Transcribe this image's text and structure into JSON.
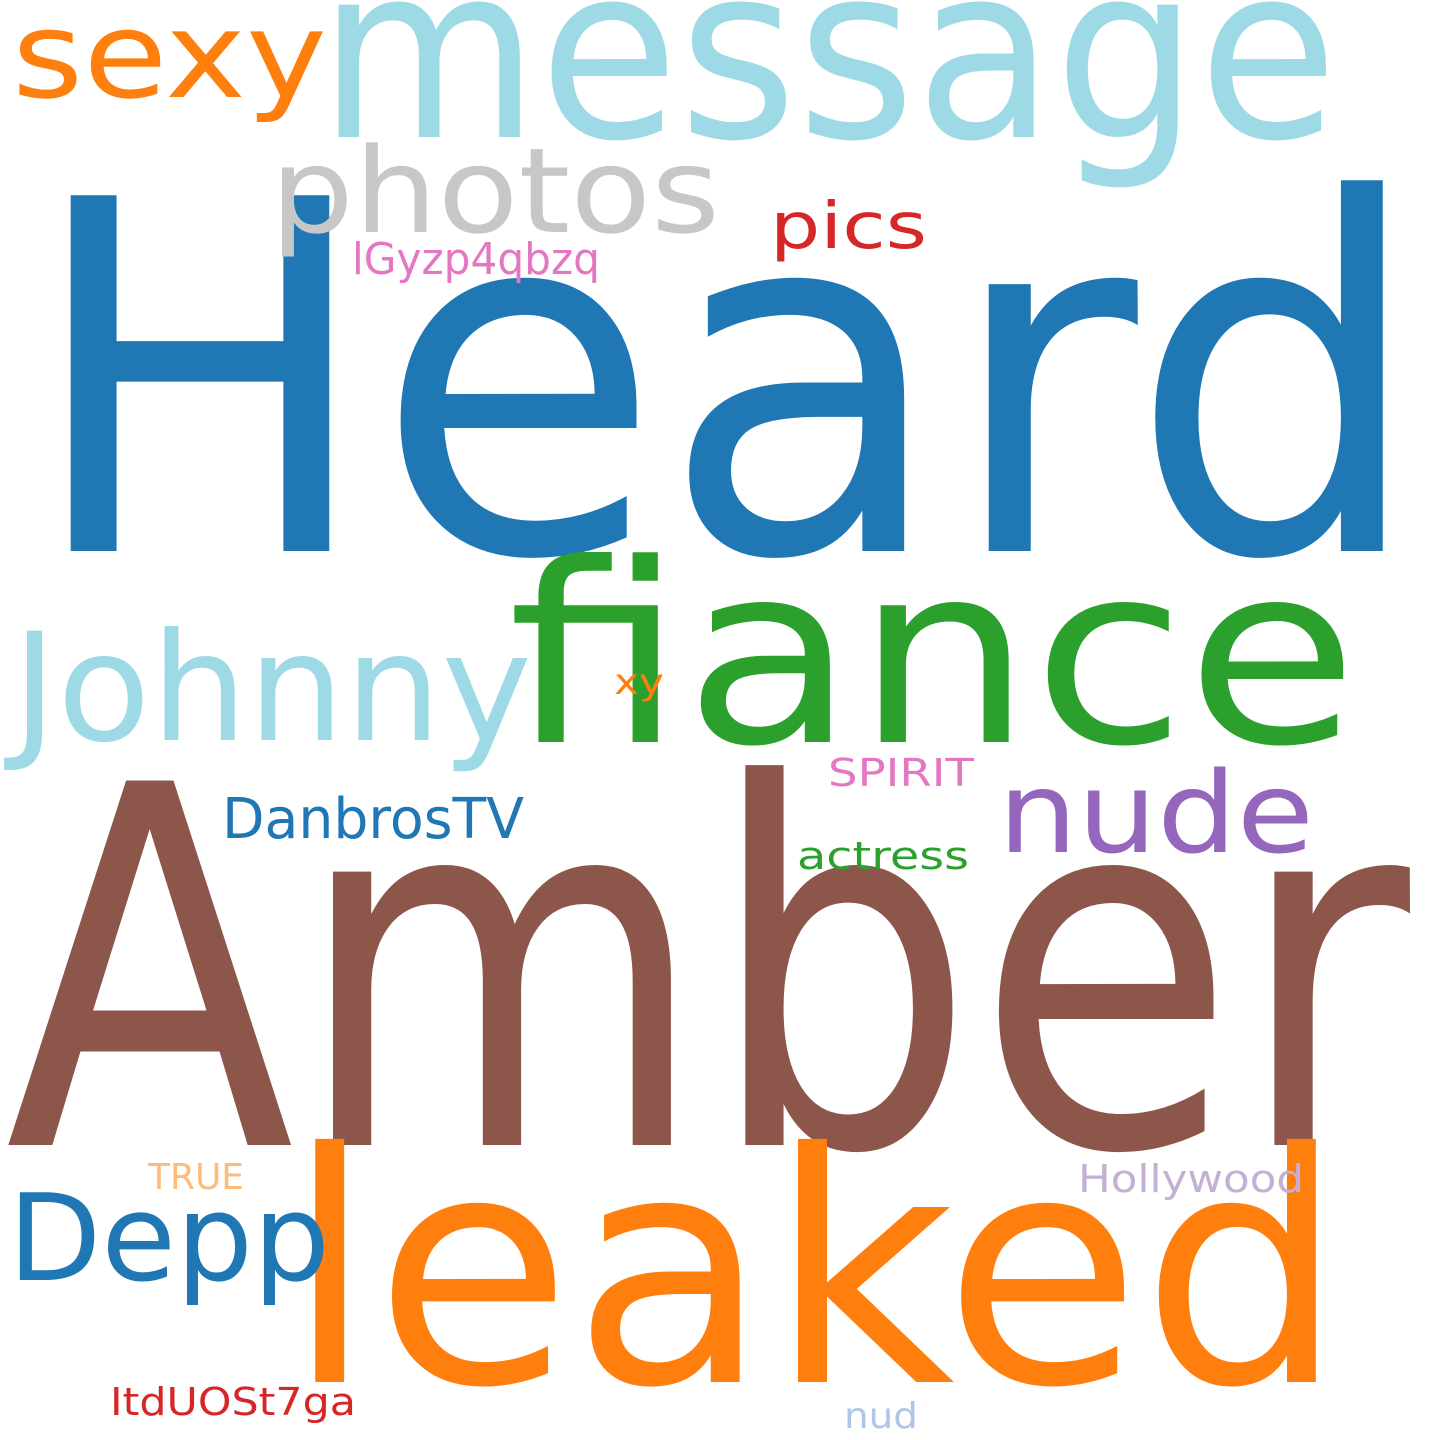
{
  "words": [
    {
      "text": "Heard",
      "color": "#1f77b4"
    },
    {
      "text": "Amber",
      "color": "#8c564b"
    },
    {
      "text": "message",
      "color": "#9edae5"
    },
    {
      "text": "fiance",
      "color": "#2ca02c"
    },
    {
      "text": "leaked",
      "color": "#ff7f0e"
    },
    {
      "text": "Johnny",
      "color": "#9edae5"
    },
    {
      "text": "sexy",
      "color": "#ff7f0e"
    },
    {
      "text": "photos",
      "color": "#c7c7c7"
    },
    {
      "text": "Depp",
      "color": "#1f77b4"
    },
    {
      "text": "nude",
      "color": "#9467bd"
    },
    {
      "text": "pics",
      "color": "#d62728"
    },
    {
      "text": "DanbrosTV",
      "color": "#1f77b4"
    },
    {
      "text": "lGyzp4qbzq",
      "color": "#e377c2"
    },
    {
      "text": "actress",
      "color": "#2ca02c"
    },
    {
      "text": "SPIRIT",
      "color": "#e377c2"
    },
    {
      "text": "Hollywood",
      "color": "#c5b0d5"
    },
    {
      "text": "ItdUOSt7ga",
      "color": "#d62728"
    },
    {
      "text": "TRUE",
      "color": "#ffbb78"
    },
    {
      "text": "xy",
      "color": "#ff7f0e"
    },
    {
      "text": "nud",
      "color": "#aec7e8"
    }
  ]
}
